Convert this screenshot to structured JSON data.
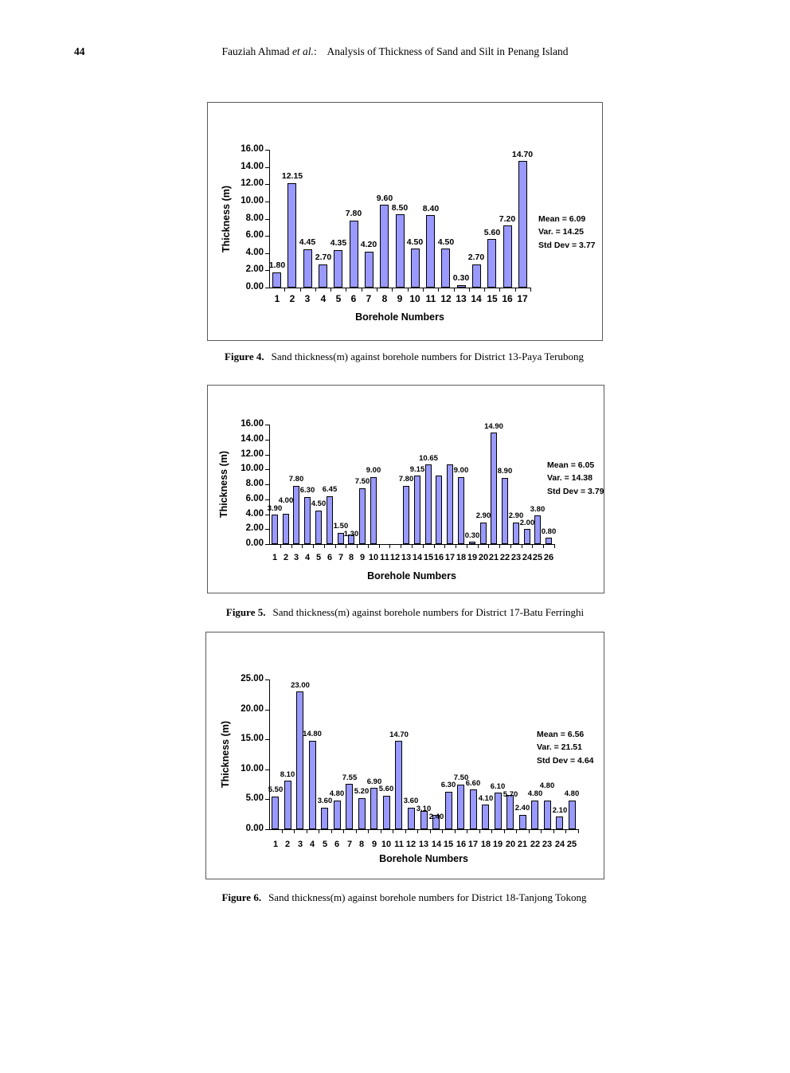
{
  "page": {
    "number": "44",
    "header": {
      "author": "Fauziah Ahmad ",
      "etal": "et al.",
      "rest": ":    Analysis of Thickness of Sand and Silt in Penang Island"
    }
  },
  "colors": {
    "bar_fill": "#9999ff",
    "bar_border": "#000000",
    "chart_border": "#5a5a5a"
  },
  "chart_data": [
    {
      "type": "bar",
      "figure_label": "Figure 4.",
      "caption": "Sand thickness(m) against borehole numbers for District 13-Paya Terubong",
      "categories": [
        "1",
        "2",
        "3",
        "4",
        "5",
        "6",
        "7",
        "8",
        "9",
        "10",
        "11",
        "12",
        "13",
        "14",
        "15",
        "16",
        "17"
      ],
      "values": [
        1.8,
        12.15,
        4.45,
        2.7,
        4.35,
        7.8,
        4.2,
        9.6,
        8.5,
        4.5,
        8.4,
        4.5,
        0.3,
        2.7,
        5.6,
        7.2,
        14.7
      ],
      "bar_labels": [
        "1.80",
        "12.15",
        "4.45",
        "2.70",
        "4.35",
        "7.80",
        "4.20",
        "9.60",
        "8.50",
        "4.50",
        "8.40",
        "4.50",
        "0.30",
        "2.70",
        "5.60",
        "7.20",
        "14.70"
      ],
      "xlabel": "Borehole Numbers",
      "ylabel": "Thickness (m)",
      "ylim": [
        0,
        16
      ],
      "yticks": [
        "0.00",
        "2.00",
        "4.00",
        "6.00",
        "8.00",
        "10.00",
        "12.00",
        "14.00",
        "16.00"
      ],
      "grid": "off",
      "legend": "none",
      "stats": [
        "Mean = 6.09",
        "Var. = 14.25",
        "Std Dev = 3.77"
      ]
    },
    {
      "type": "bar",
      "figure_label": "Figure 5.",
      "caption": "Sand thickness(m) against borehole numbers for District 17-Batu Ferringhi",
      "categories": [
        "1",
        "2",
        "3",
        "4",
        "5",
        "6",
        "7",
        "8",
        "9",
        "10",
        "11",
        "12",
        "13",
        "14",
        "15",
        "16",
        "17",
        "18",
        "19",
        "20",
        "21",
        "22",
        "23",
        "24",
        "25",
        "26"
      ],
      "values": [
        3.9,
        4.0,
        7.8,
        6.3,
        4.5,
        6.45,
        1.5,
        1.3,
        7.5,
        9.0,
        0,
        0,
        7.8,
        9.15,
        10.65,
        9.15,
        10.65,
        9.0,
        0.3,
        2.9,
        14.9,
        8.9,
        2.9,
        2.0,
        3.8,
        0.8
      ],
      "bar_labels": [
        "3.90",
        "4.00",
        "7.80",
        "6.30",
        "4.50",
        "6.45",
        "1.50",
        "1.30",
        "7.50",
        "9.00",
        "",
        "",
        "7.80",
        "9.15",
        "10.65",
        "",
        "",
        "9.00",
        "0.30",
        "2.90",
        "14.90",
        "8.90",
        "2.90",
        "2.00",
        "3.80",
        "0.80"
      ],
      "xlabel": "Borehole Numbers",
      "ylabel": "Thickness (m)",
      "ylim": [
        0,
        16
      ],
      "yticks": [
        "0.00",
        "2.00",
        "4.00",
        "6.00",
        "8.00",
        "10.00",
        "12.00",
        "14.00",
        "16.00"
      ],
      "grid": "off",
      "legend": "none",
      "stats": [
        "Mean = 6.05",
        "Var. = 14.38",
        "Std Dev = 3.79"
      ]
    },
    {
      "type": "bar",
      "figure_label": "Figure 6.",
      "caption": "Sand thickness(m) against borehole numbers for District 18-Tanjong Tokong",
      "categories": [
        "1",
        "2",
        "3",
        "4",
        "5",
        "6",
        "7",
        "8",
        "9",
        "10",
        "11",
        "12",
        "13",
        "14",
        "15",
        "16",
        "17",
        "18",
        "19",
        "20",
        "21",
        "22",
        "23",
        "24",
        "25"
      ],
      "values": [
        5.5,
        8.1,
        23.0,
        14.8,
        3.6,
        4.8,
        7.55,
        5.2,
        6.9,
        5.6,
        14.7,
        3.6,
        3.1,
        2.4,
        6.3,
        7.5,
        6.6,
        4.1,
        6.1,
        5.7,
        2.4,
        4.8,
        4.8,
        2.1,
        4.8
      ],
      "bar_labels": [
        "5.50",
        "8.10",
        "23.00",
        "14.80",
        "3.60",
        "4.80",
        "7.55",
        "5.20",
        "6.90",
        "5.60",
        "14.70",
        "3.60",
        "3.10",
        "2.40",
        "6.30",
        "7.50",
        "6.60",
        "4.10",
        "6.10",
        "5.70",
        "2.40",
        "4.80",
        "4.80",
        "2.10",
        "4.80"
      ],
      "xlabel": "Borehole Numbers",
      "ylabel": "Thickness (m)",
      "ylim": [
        0,
        25
      ],
      "yticks": [
        "0.00",
        "5.00",
        "10.00",
        "15.00",
        "20.00",
        "25.00"
      ],
      "grid": "off",
      "legend": "none",
      "stats": [
        "Mean = 6.56",
        "Var. = 21.51",
        "Std Dev = 4.64"
      ]
    }
  ]
}
